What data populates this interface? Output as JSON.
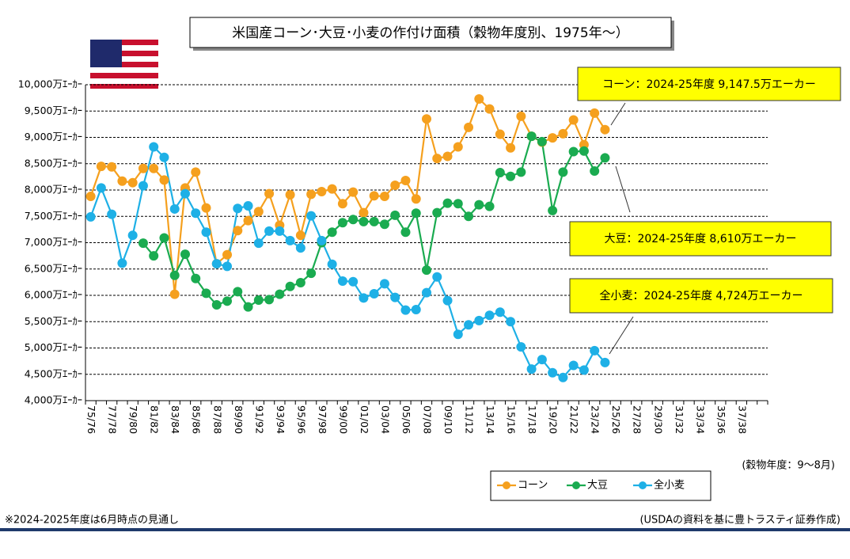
{
  "chart_data": {
    "type": "line",
    "title": "米国産コーン･大豆･小麦の作付け面積（穀物年度別、1975年～）",
    "x_note": "(穀物年度：9～8月)",
    "footnote": "※2024-2025年度は6月時点の見通し",
    "source": "(USDAの資料を基に豊トラスティ証券作成)",
    "annotations": [
      "コーン：2024-25年度  9,147.5万エーカー",
      "大豆：2024-25年度  8,610万エーカー",
      "全小麦：2024-25年度  4,724万エーカー"
    ],
    "categories": [
      "75/76",
      null,
      "77/78",
      null,
      "79/80",
      null,
      "81/82",
      null,
      "83/84",
      null,
      "85/86",
      null,
      "87/88",
      null,
      "89/90",
      null,
      "91/92",
      null,
      "93/94",
      null,
      "95/96",
      null,
      "97/98",
      null,
      "99/00",
      null,
      "01/02",
      null,
      "03/04",
      null,
      "05/06",
      null,
      "07/08",
      null,
      "09/10",
      null,
      "11/12",
      null,
      "13/14",
      null,
      "15/16",
      null,
      "17/18",
      null,
      "19/20",
      null,
      "21/22",
      null,
      "23/24",
      null,
      "25/26",
      null,
      "27/28",
      null,
      "29/30",
      null,
      "31/32",
      null,
      "33/34",
      null,
      "35/36",
      null,
      "37/38",
      null,
      null
    ],
    "series": [
      {
        "name": "コーン",
        "color": "#f5a01e",
        "values": [
          7880,
          8450,
          8440,
          8170,
          8140,
          8410,
          8410,
          8190,
          6020,
          8040,
          8340,
          7660,
          6600,
          6770,
          7230,
          7420,
          7590,
          7930,
          7330,
          7910,
          7140,
          7920,
          7970,
          8020,
          7740,
          7960,
          7570,
          7890,
          7880,
          8090,
          8180,
          7830,
          9350,
          8600,
          8640,
          8820,
          9190,
          9730,
          9540,
          9060,
          8800,
          9400,
          9020,
          8910,
          8990,
          9070,
          9330,
          8860,
          9460,
          9147.5,
          null,
          null,
          null,
          null,
          null,
          null,
          null,
          null,
          null,
          null,
          null,
          null,
          null,
          null,
          null
        ]
      },
      {
        "name": "大豆",
        "color": "#1aab50",
        "values": [
          null,
          null,
          null,
          null,
          null,
          6990,
          6750,
          7090,
          6380,
          6780,
          6320,
          6040,
          5820,
          5890,
          6070,
          5780,
          5910,
          5920,
          6020,
          6170,
          6240,
          6420,
          7000,
          7200,
          7380,
          7440,
          7400,
          7400,
          7350,
          7520,
          7200,
          7560,
          6480,
          7570,
          7750,
          7740,
          7500,
          7720,
          7690,
          8330,
          8260,
          8340,
          9020,
          8920,
          7610,
          8340,
          8730,
          8740,
          8360,
          8610,
          null,
          null,
          null,
          null,
          null,
          null,
          null,
          null,
          null,
          null,
          null,
          null,
          null,
          null,
          null
        ]
      },
      {
        "name": "全小麦",
        "color": "#1eb0e6",
        "values": [
          7490,
          8040,
          7540,
          6610,
          7140,
          8080,
          8820,
          8620,
          7640,
          7930,
          7560,
          7200,
          6600,
          6550,
          7650,
          7700,
          6990,
          7220,
          7220,
          7040,
          6900,
          7510,
          7040,
          6590,
          6270,
          6260,
          5950,
          6030,
          6220,
          5960,
          5720,
          5730,
          6050,
          6350,
          5900,
          5260,
          5440,
          5520,
          5620,
          5680,
          5500,
          5020,
          4600,
          4780,
          4530,
          4440,
          4670,
          4580,
          4950,
          4724,
          null,
          null,
          null,
          null,
          null,
          null,
          null,
          null,
          null,
          null,
          null,
          null,
          null,
          null,
          null
        ]
      }
    ],
    "ylim": [
      4000,
      10000
    ],
    "yticks": [
      {
        "value": 4000,
        "label": "4,000万ｴｰｶｰ"
      },
      {
        "value": 4500,
        "label": "4,500万ｴｰｶｰ"
      },
      {
        "value": 5000,
        "label": "5,000万ｴｰｶｰ"
      },
      {
        "value": 5500,
        "label": "5,500万ｴｰｶｰ"
      },
      {
        "value": 6000,
        "label": "6,000万ｴｰｶｰ"
      },
      {
        "value": 6500,
        "label": "6,500万ｴｰｶｰ"
      },
      {
        "value": 7000,
        "label": "7,000万ｴｰｶｰ"
      },
      {
        "value": 7500,
        "label": "7,500万ｴｰｶｰ"
      },
      {
        "value": 8000,
        "label": "8,000万ｴｰｶｰ"
      },
      {
        "value": 8500,
        "label": "8,500万ｴｰｶｰ"
      },
      {
        "value": 9000,
        "label": "9,000万ｴｰｶｰ"
      },
      {
        "value": 9500,
        "label": "9,500万ｴｰｶｰ"
      },
      {
        "value": 10000,
        "label": "10,000万ｴｰｶｰ"
      }
    ],
    "grid": true,
    "legend": "bottom-right"
  }
}
